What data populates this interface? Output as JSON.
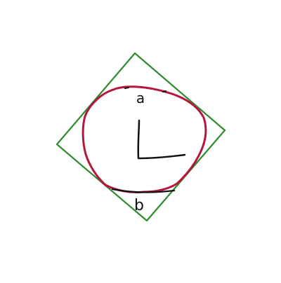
{
  "diagram": {
    "background_color": "#ffffff",
    "colors": {
      "square": "#2e8b2e",
      "circle": "#b5173c",
      "ink": "#111111"
    },
    "labels": {
      "top": "a",
      "bottom": "b"
    },
    "shapes": [
      {
        "id": "tilted-square",
        "kind": "square",
        "description_name": "tilted-square-outline"
      },
      {
        "id": "inscribed-circle",
        "kind": "circle",
        "description_name": "freehand-circle"
      },
      {
        "id": "clock-hands",
        "kind": "right-angle",
        "description_name": "clock-hands"
      }
    ]
  }
}
